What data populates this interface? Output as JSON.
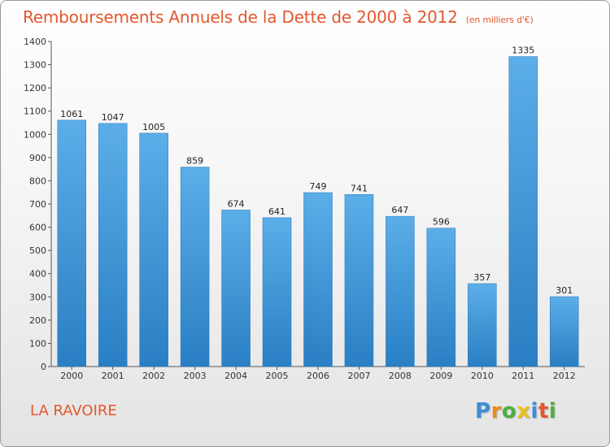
{
  "header": {
    "title": "Remboursements Annuels de la Dette de 2000 à 2012",
    "unit": "(en milliers d'€)"
  },
  "footer": {
    "place": "LA RAVOIRE",
    "logo": {
      "p": "P",
      "r": "r",
      "o": "o",
      "x": "x",
      "i1": "i",
      "t": "t",
      "i2": "i"
    }
  },
  "colors": {
    "title": "#e4572e",
    "bar_light": "#5baee8",
    "bar_dark": "#2a7fc4"
  },
  "chart_data": {
    "type": "bar",
    "title": "Remboursements Annuels de la Dette de 2000 à 2012",
    "xlabel": "",
    "ylabel": "",
    "categories": [
      "2000",
      "2001",
      "2002",
      "2003",
      "2004",
      "2005",
      "2006",
      "2007",
      "2008",
      "2009",
      "2010",
      "2011",
      "2012"
    ],
    "values": [
      1061,
      1047,
      1005,
      859,
      674,
      641,
      749,
      741,
      647,
      596,
      357,
      1335,
      301
    ],
    "ylim": [
      0,
      1400
    ],
    "yticks": [
      0,
      100,
      200,
      300,
      400,
      500,
      600,
      700,
      800,
      900,
      1000,
      1100,
      1200,
      1300,
      1400
    ],
    "grid": false
  }
}
